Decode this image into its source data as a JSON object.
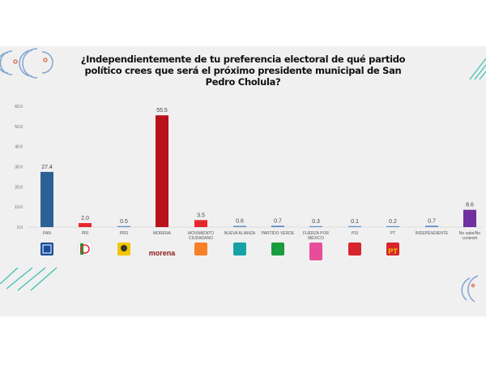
{
  "chart_data": {
    "type": "bar",
    "title": "¿Independientemente de tu preferencia electoral de qué partido político crees que será el próximo presidente municipal de San Pedro Cholula?",
    "categories": [
      "PAN",
      "PRI",
      "PRD",
      "MORENA",
      "MOVIMIENTO CIUDADANO",
      "NUEVA ALIANZA",
      "PARTIDO VERDE",
      "FUERZA POR MÉXICO",
      "PSI",
      "PT",
      "INDEPENDIENTE",
      "No sabe/No contestó"
    ],
    "values": [
      27.4,
      2.0,
      0.5,
      55.5,
      3.5,
      0.6,
      0.7,
      0.3,
      0.1,
      0.2,
      0.7,
      8.6
    ],
    "value_labels": [
      "27.4",
      "2.0",
      "0.5",
      "55.5",
      "3.5",
      "0.6",
      "0.7",
      "0.3",
      "0.1",
      "0.2",
      "0.7",
      "8.6"
    ],
    "colors": [
      "#2c6195",
      "#e8282b",
      "#5b8fc9",
      "#b8121b",
      "#e5292b",
      "#5b8fc9",
      "#5b8fc9",
      "#5b8fc9",
      "#5b8fc9",
      "#5b8fc9",
      "#5b8fc9",
      "#7030a0"
    ],
    "ylim": [
      0,
      60
    ],
    "yticks": [
      "0.0",
      "10.0",
      "20.0",
      "30.0",
      "40.0",
      "50.0",
      "60.0"
    ],
    "grid": false,
    "xlabel": "",
    "ylabel": ""
  },
  "logos": [
    "pan-logo",
    "pri-logo",
    "prd-logo",
    "morena-logo",
    "movimiento-ciudadano-logo",
    "nueva-alianza-logo",
    "partido-verde-logo",
    "fuerza-por-mexico-logo",
    "psi-logo",
    "pt-logo"
  ],
  "logo_text": {
    "morena": "morena",
    "pt": "PT",
    "pan": "PAN",
    "psi": "PSI"
  }
}
